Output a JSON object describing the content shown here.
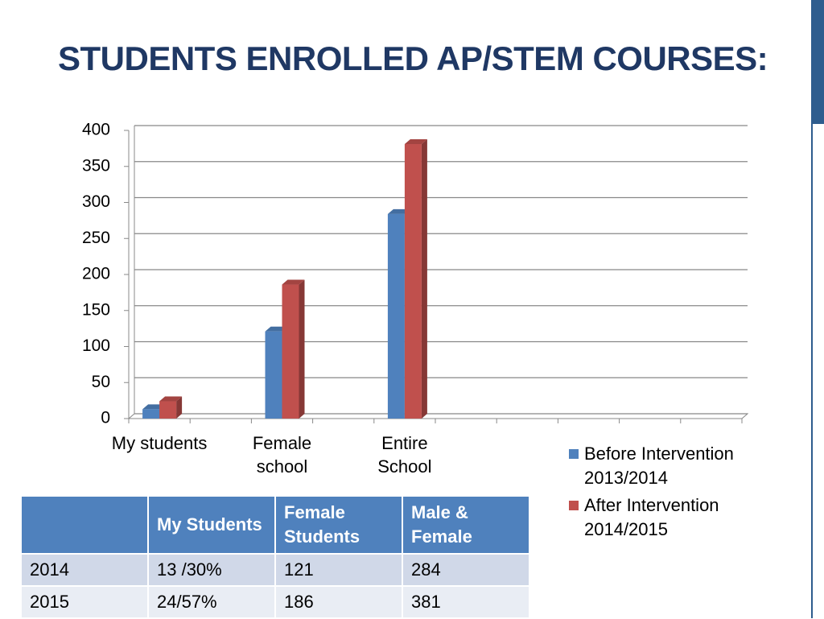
{
  "title": "STUDENTS ENROLLED AP/STEM COURSES:",
  "chart_data": {
    "type": "bar",
    "three_d": true,
    "categories": [
      "My students",
      "Female school",
      "Entire School",
      null,
      null
    ],
    "series": [
      {
        "name": "Before Intervention 2013/2014",
        "color": "#4f81bd",
        "values": [
          13,
          121,
          284,
          null,
          null
        ]
      },
      {
        "name": "After Intervention 2014/2015",
        "color": "#c0504d",
        "values": [
          24,
          186,
          381,
          null,
          null
        ]
      }
    ],
    "ylim": [
      0,
      400
    ],
    "yticks": [
      0,
      50,
      100,
      150,
      200,
      250,
      300,
      350,
      400
    ],
    "grid": true,
    "legend": "right"
  },
  "table": {
    "header": [
      null,
      "My Students",
      "Female Students",
      "Male & Female"
    ],
    "rows": [
      [
        "2014",
        "13 /30%",
        "121",
        "284"
      ],
      [
        "2015",
        "24/57%",
        "186",
        "381"
      ]
    ]
  }
}
